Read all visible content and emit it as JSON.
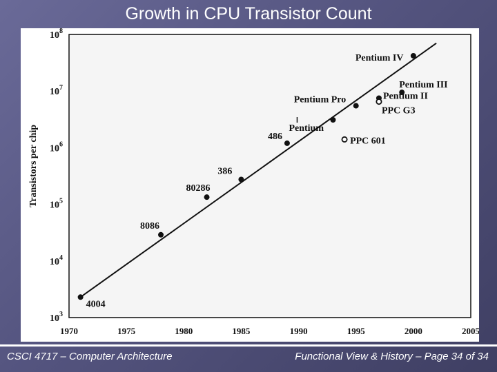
{
  "slide": {
    "title": "Growth in CPU Transistor Count",
    "footer_left": "CSCI 4717 – Computer Architecture",
    "footer_right": "Functional View & History – Page 34 of 34"
  },
  "chart_data": {
    "type": "scatter",
    "ylabel": "Transistors per chip",
    "x_ticks": [
      "1970",
      "1975",
      "1980",
      "1985",
      "1990",
      "1995",
      "2000",
      "2005"
    ],
    "xlim": [
      1970,
      2005
    ],
    "y_scale": "log",
    "ylim": [
      1000,
      100000000
    ],
    "y_ticks": [
      {
        "base": "10",
        "exp": "3"
      },
      {
        "base": "10",
        "exp": "4"
      },
      {
        "base": "10",
        "exp": "5"
      },
      {
        "base": "10",
        "exp": "6"
      },
      {
        "base": "10",
        "exp": "7"
      },
      {
        "base": "10",
        "exp": "8"
      }
    ],
    "grid": true,
    "points": [
      {
        "name": "4004",
        "x": 1971,
        "y": 2300,
        "marker": "filled"
      },
      {
        "name": "8086",
        "x": 1978,
        "y": 29000,
        "marker": "filled"
      },
      {
        "name": "80286",
        "x": 1982,
        "y": 134000,
        "marker": "filled"
      },
      {
        "name": "386",
        "x": 1985,
        "y": 275000,
        "marker": "filled"
      },
      {
        "name": "486",
        "x": 1989,
        "y": 1200000,
        "marker": "filled"
      },
      {
        "name": "Pentium",
        "x": 1993,
        "y": 3100000,
        "marker": "filled"
      },
      {
        "name": "Pentium Pro",
        "x": 1995,
        "y": 5500000,
        "marker": "filled"
      },
      {
        "name": "Pentium II",
        "x": 1997,
        "y": 7500000,
        "marker": "filled"
      },
      {
        "name": "Pentium III",
        "x": 1999,
        "y": 9500000,
        "marker": "filled"
      },
      {
        "name": "Pentium IV",
        "x": 2000,
        "y": 42000000,
        "marker": "filled"
      },
      {
        "name": "PPC 601",
        "x": 1994,
        "y": 1400000,
        "marker": "open"
      },
      {
        "name": "PPC G3",
        "x": 1997,
        "y": 6500000,
        "marker": "open"
      }
    ],
    "trend_line": {
      "from": {
        "x": 1971,
        "y": 2300
      },
      "to": {
        "x": 2002,
        "y": 70000000
      }
    }
  }
}
